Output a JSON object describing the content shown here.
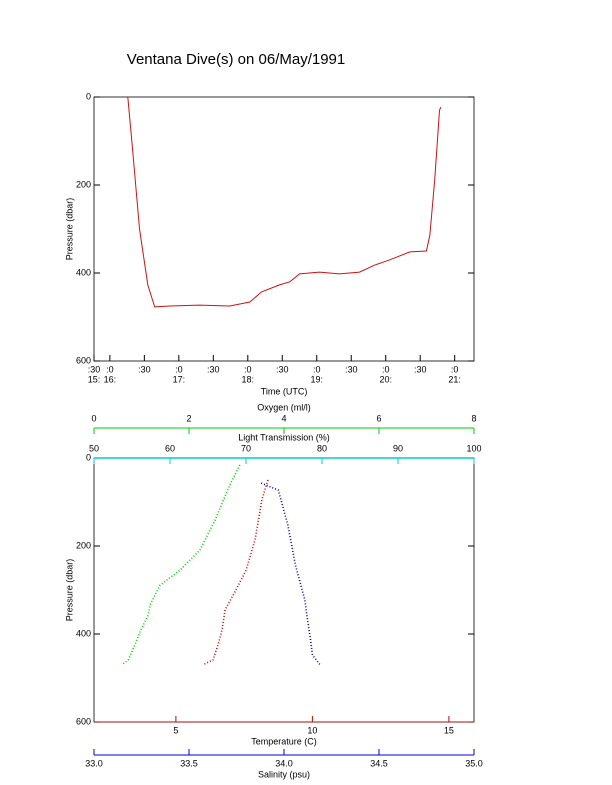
{
  "chart_data": [
    {
      "type": "line",
      "title": "Ventana Dive(s) on 06/May/1991",
      "xlabel": "Time (UTC)",
      "ylabel": "Pressure (dbar)",
      "xlim": [
        15.77,
        21.28
      ],
      "ylim": [
        0,
        600
      ],
      "y_inverted": true,
      "yticks": [
        0,
        200,
        400,
        600
      ],
      "xticks": [
        {
          "value": 15.77,
          "label": ":30"
        },
        {
          "value": 16,
          "label": ":0"
        },
        {
          "value": 16.5,
          "label": ":30"
        },
        {
          "value": 17,
          "label": ":0"
        },
        {
          "value": 17.5,
          "label": ":30"
        },
        {
          "value": 18,
          "label": ":0"
        },
        {
          "value": 18.5,
          "label": ":30"
        },
        {
          "value": 19,
          "label": ":0"
        },
        {
          "value": 19.5,
          "label": ":30"
        },
        {
          "value": 20,
          "label": ":0"
        },
        {
          "value": 20.5,
          "label": ":30"
        },
        {
          "value": 21,
          "label": ":0"
        }
      ],
      "xticks_hours": [
        {
          "value": 15.77,
          "label": "15:"
        },
        {
          "value": 16,
          "label": "16:"
        },
        {
          "value": 17,
          "label": "17:"
        },
        {
          "value": 18,
          "label": "18:"
        },
        {
          "value": 19,
          "label": "19:"
        },
        {
          "value": 20,
          "label": "20:"
        },
        {
          "value": 21,
          "label": "21:"
        }
      ],
      "color": "#d01010",
      "x": [
        16.26,
        16.33,
        16.43,
        16.55,
        16.65,
        16.87,
        17.3,
        17.74,
        18.03,
        18.2,
        18.46,
        18.61,
        18.75,
        19.04,
        19.33,
        19.62,
        19.84,
        20.06,
        20.35,
        20.59,
        20.64,
        20.71,
        20.78,
        20.8
      ],
      "y": [
        0,
        120,
        300,
        427,
        477,
        475,
        473,
        475,
        466,
        443,
        427,
        420,
        402,
        398,
        402,
        398,
        382,
        370,
        352,
        350,
        314,
        189,
        30,
        23
      ]
    },
    {
      "type": "profile",
      "ylabel": "Pressure (dbar)",
      "ylim": [
        0,
        600
      ],
      "y_inverted": true,
      "yticks": [
        0,
        200,
        400,
        600
      ],
      "axes": [
        {
          "label": "Oxygen (ml/l)",
          "color": "#00cc00",
          "xlim": [
            0,
            8
          ],
          "xticks": [
            0,
            2,
            4,
            6,
            8
          ],
          "x": [
            3.07,
            2.86,
            2.55,
            2.23,
            1.81,
            1.39,
            1.18,
            1.14,
            0.97,
            0.86,
            0.72,
            0.59
          ],
          "y": [
            16,
            61,
            141,
            209,
            255,
            289,
            334,
            357,
            395,
            425,
            459,
            470
          ]
        },
        {
          "label": "Light Transmission (%)",
          "color": "#00cccc",
          "xlim": [
            50,
            100
          ],
          "xticks": [
            50,
            60,
            70,
            80,
            90,
            100
          ]
        },
        {
          "label": "Temperature (C)",
          "color": "#cc0000",
          "xlim": [
            2.0,
            15.92
          ],
          "xticks": [
            5,
            10,
            15
          ],
          "x": [
            8.37,
            8.15,
            7.9,
            7.57,
            7.2,
            6.8,
            6.69,
            6.54,
            6.36,
            5.99
          ],
          "y": [
            50,
            95,
            186,
            255,
            300,
            345,
            391,
            425,
            459,
            470
          ]
        },
        {
          "label": "Salinity (psu)",
          "color": "#0000cc",
          "xlim": [
            33,
            35
          ],
          "xticks": [
            {
              "value": 33,
              "label": "33.0"
            },
            33.5,
            {
              "value": 34,
              "label": "34.0"
            },
            34.5,
            {
              "value": 35,
              "label": "35.0"
            }
          ],
          "x": [
            33.88,
            33.97,
            34.02,
            34.06,
            34.11,
            34.12,
            34.14,
            34.15,
            34.19
          ],
          "y": [
            57,
            73,
            152,
            243,
            323,
            357,
            414,
            448,
            470
          ]
        }
      ]
    }
  ]
}
